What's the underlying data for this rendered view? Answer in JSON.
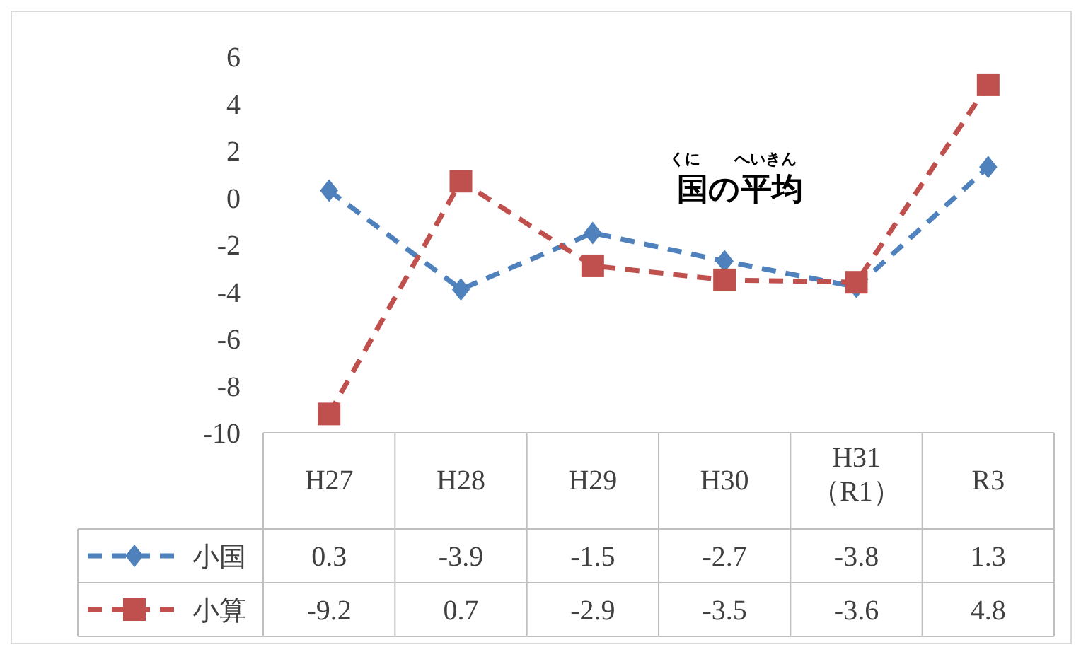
{
  "chart_data": {
    "type": "line",
    "title": "国の平均",
    "annotations": [
      "くに",
      "へいきん"
    ],
    "categories": [
      "H27",
      "H28",
      "H29",
      "H30",
      "H31\n（R1）",
      "R3"
    ],
    "series": [
      {
        "name": "小国",
        "color": "#4f81bd",
        "marker": "diamond",
        "values": [
          0.3,
          -3.9,
          -1.5,
          -2.7,
          -3.8,
          1.3
        ]
      },
      {
        "name": "小算",
        "color": "#c0504d",
        "marker": "square",
        "values": [
          -9.2,
          0.7,
          -2.9,
          -3.5,
          -3.6,
          4.8
        ]
      }
    ],
    "ylim": [
      -10,
      6
    ],
    "yticks": [
      -10,
      -8,
      -6,
      -4,
      -2,
      0,
      2,
      4,
      6
    ],
    "line_style": "dashed",
    "grid": false,
    "legend": "bottom",
    "data_labels": true
  }
}
